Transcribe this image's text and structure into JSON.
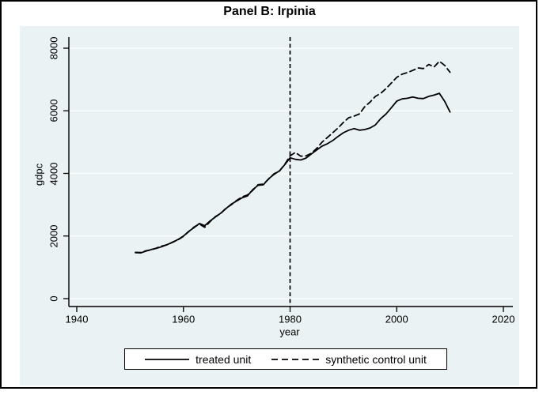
{
  "chart": {
    "title": "Panel B: Irpinia",
    "xlabel": "year",
    "ylabel": "gdpc",
    "legend": [
      {
        "label": "treated unit",
        "style": "solid"
      },
      {
        "label": "synthetic control unit",
        "style": "dashed"
      }
    ]
  },
  "colors": {
    "panel_bg": "#eaf2f3",
    "grid": "#ffffff",
    "line": "#000000",
    "border": "#000000",
    "legend_bg": "#ffffff"
  },
  "chart_data": {
    "type": "line",
    "title": "Panel B: Irpinia",
    "xlabel": "year",
    "ylabel": "gdpc",
    "xticks": [
      1940,
      1960,
      1980,
      2000,
      2020
    ],
    "yticks": [
      0,
      2000,
      4000,
      6000,
      8000
    ],
    "xlim": [
      1938.5,
      2021.8
    ],
    "ylim": [
      0,
      8350
    ],
    "grid": "horizontal",
    "legend_position": "bottom",
    "vline": {
      "x": 1980,
      "style": "dashed"
    },
    "x": [
      1951,
      1952,
      1953,
      1954,
      1955,
      1956,
      1957,
      1958,
      1959,
      1960,
      1961,
      1962,
      1963,
      1964,
      1965,
      1966,
      1967,
      1968,
      1969,
      1970,
      1971,
      1972,
      1973,
      1974,
      1975,
      1976,
      1977,
      1978,
      1979,
      1980,
      1981,
      1982,
      1983,
      1984,
      1985,
      1986,
      1987,
      1988,
      1989,
      1990,
      1991,
      1992,
      1993,
      1994,
      1995,
      1996,
      1997,
      1998,
      1999,
      2000,
      2001,
      2002,
      2003,
      2004,
      2005,
      2006,
      2007,
      2008,
      2009,
      2010
    ],
    "series": [
      {
        "name": "treated unit",
        "style": "solid",
        "color": "#000000",
        "values": [
          1470,
          1460,
          1520,
          1570,
          1610,
          1660,
          1730,
          1800,
          1890,
          2000,
          2150,
          2270,
          2400,
          2330,
          2480,
          2610,
          2730,
          2880,
          3020,
          3120,
          3220,
          3280,
          3480,
          3620,
          3640,
          3830,
          3970,
          4080,
          4280,
          4500,
          4450,
          4430,
          4490,
          4620,
          4750,
          4870,
          4950,
          5050,
          5180,
          5300,
          5380,
          5430,
          5380,
          5400,
          5450,
          5550,
          5750,
          5900,
          6100,
          6310,
          6380,
          6400,
          6440,
          6400,
          6390,
          6460,
          6500,
          6560,
          6300,
          5960
        ]
      },
      {
        "name": "synthetic control unit",
        "style": "dashed",
        "color": "#000000",
        "values": [
          1480,
          1475,
          1530,
          1560,
          1620,
          1680,
          1720,
          1810,
          1880,
          1990,
          2140,
          2290,
          2380,
          2280,
          2460,
          2620,
          2720,
          2890,
          3000,
          3140,
          3250,
          3310,
          3460,
          3640,
          3660,
          3820,
          3990,
          4070,
          4290,
          4560,
          4670,
          4550,
          4560,
          4640,
          4800,
          5000,
          5150,
          5300,
          5450,
          5630,
          5780,
          5830,
          5900,
          6130,
          6280,
          6460,
          6560,
          6710,
          6890,
          7070,
          7170,
          7220,
          7290,
          7370,
          7350,
          7480,
          7400,
          7580,
          7450,
          7230
        ]
      }
    ]
  }
}
